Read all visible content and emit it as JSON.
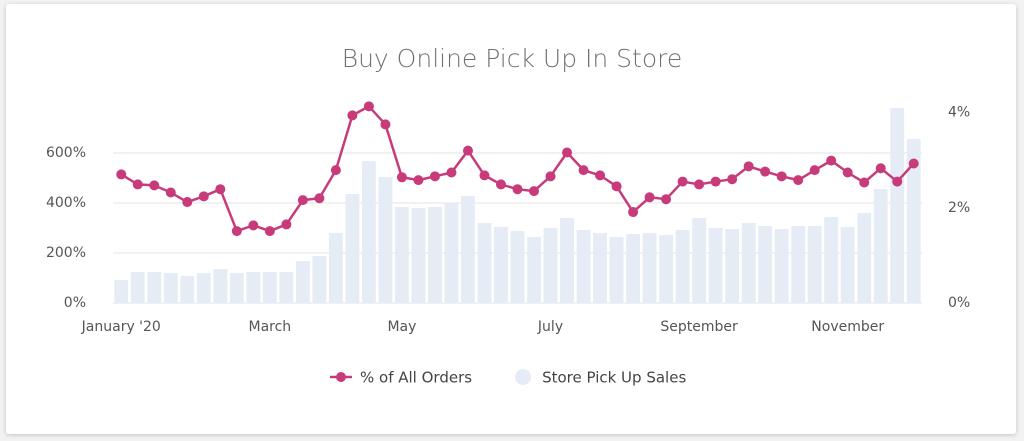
{
  "chart_data": {
    "type": "bar",
    "title": "Buy Online Pick Up In Store",
    "categories": [
      "January '20",
      null,
      null,
      null,
      null,
      null,
      null,
      null,
      null,
      "March",
      null,
      null,
      null,
      null,
      null,
      null,
      null,
      "May",
      null,
      null,
      null,
      null,
      null,
      null,
      null,
      null,
      "July",
      null,
      null,
      null,
      null,
      null,
      null,
      null,
      null,
      "September",
      null,
      null,
      null,
      null,
      null,
      null,
      null,
      null,
      "November",
      null,
      null,
      null,
      null
    ],
    "series": [
      {
        "name": "% of All Orders",
        "type": "line",
        "axis": "y2",
        "color": "#c83b7a",
        "values": [
          2.7,
          2.49,
          2.47,
          2.32,
          2.12,
          2.24,
          2.39,
          1.51,
          1.63,
          1.51,
          1.65,
          2.16,
          2.2,
          2.79,
          3.94,
          4.13,
          3.75,
          2.64,
          2.58,
          2.66,
          2.74,
          3.2,
          2.68,
          2.49,
          2.39,
          2.35,
          2.66,
          3.16,
          2.79,
          2.68,
          2.45,
          1.91,
          2.22,
          2.18,
          2.55,
          2.49,
          2.55,
          2.6,
          2.87,
          2.76,
          2.66,
          2.58,
          2.79,
          2.99,
          2.74,
          2.53,
          2.83,
          2.55,
          2.93
        ]
      },
      {
        "name": "Store Pick Up Sales",
        "type": "bar",
        "color": "#e6ecf6",
        "values": [
          92,
          124,
          124,
          120,
          108,
          120,
          136,
          120,
          124,
          124,
          124,
          168,
          188,
          280,
          436,
          568,
          504,
          384,
          380,
          384,
          400,
          428,
          320,
          304,
          288,
          264,
          300,
          340,
          292,
          280,
          264,
          276,
          280,
          272,
          292,
          340,
          300,
          296,
          320,
          308,
          296,
          308,
          308,
          344,
          304,
          360,
          456,
          780,
          656
        ]
      }
    ],
    "ylim": [
      0,
      800
    ],
    "yticks": [
      {
        "value": 0,
        "label": "0%"
      },
      {
        "value": 200,
        "label": "200%"
      },
      {
        "value": 400,
        "label": "400%"
      },
      {
        "value": 600,
        "label": "600%"
      }
    ],
    "y2lim": [
      0,
      4.2
    ],
    "y2ticks": [
      {
        "value": 0,
        "label": "0%"
      },
      {
        "value": 2,
        "label": "2%"
      },
      {
        "value": 4,
        "label": "4%"
      }
    ],
    "grid": true
  }
}
